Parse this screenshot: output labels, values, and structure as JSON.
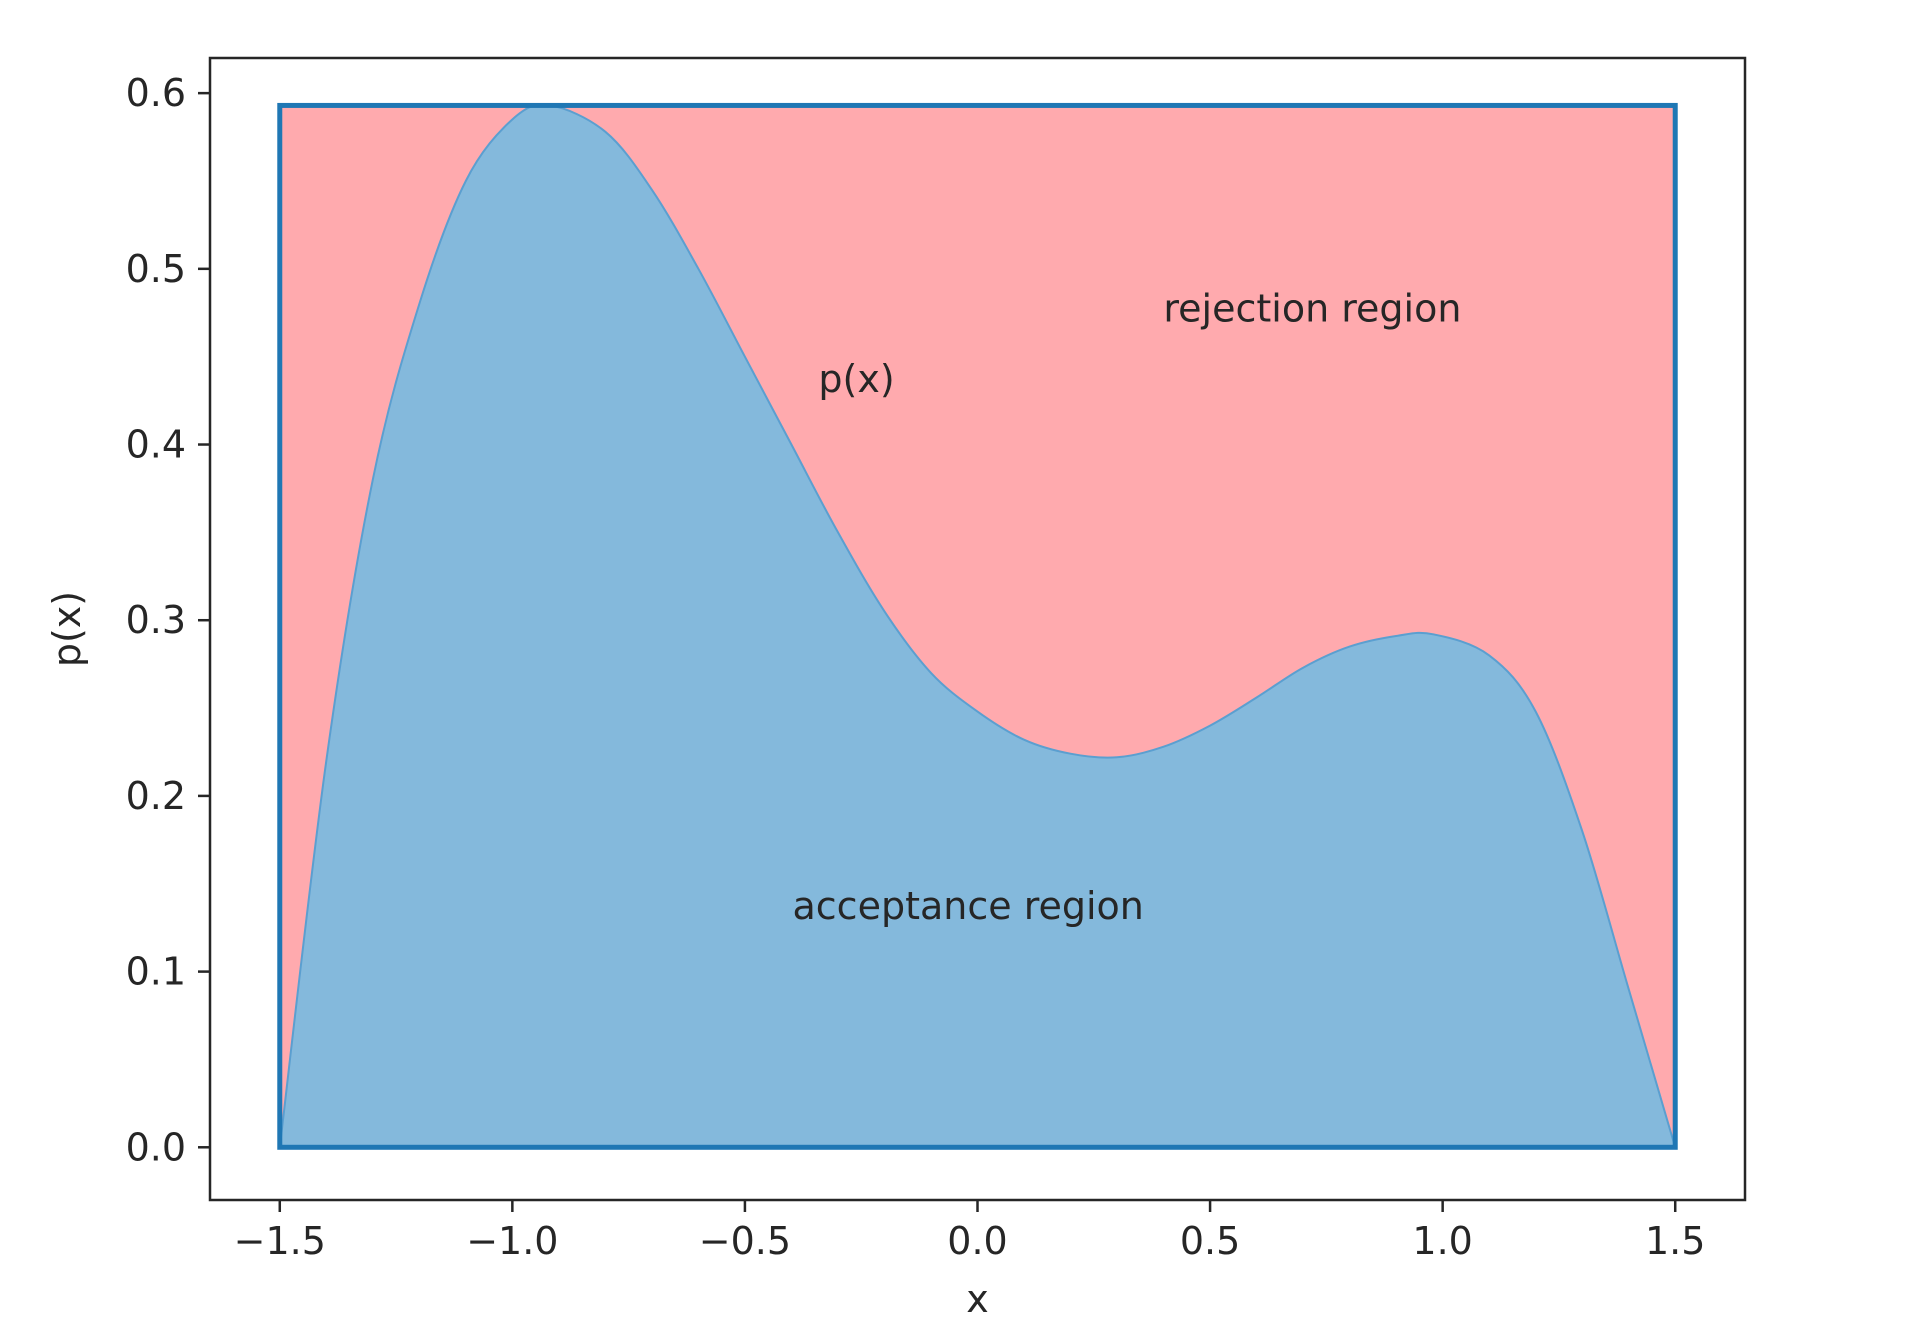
{
  "chart_data": {
    "type": "area",
    "title": "",
    "xlabel": "x",
    "ylabel": "p(x)",
    "xlim": [
      -1.65,
      1.65
    ],
    "ylim": [
      -0.03,
      0.62
    ],
    "xticks": [
      -1.5,
      -1.0,
      -0.5,
      0.0,
      0.5,
      1.0,
      1.5
    ],
    "xtick_labels": [
      "−1.5",
      "−1.0",
      "−0.5",
      "0.0",
      "0.5",
      "1.0",
      "1.5"
    ],
    "yticks": [
      0.0,
      0.1,
      0.2,
      0.3,
      0.4,
      0.5,
      0.6
    ],
    "ytick_labels": [
      "0.0",
      "0.1",
      "0.2",
      "0.3",
      "0.4",
      "0.5",
      "0.6"
    ],
    "grid": false,
    "series": [
      {
        "name": "p(x)",
        "x": [
          -1.5,
          -1.4,
          -1.3,
          -1.2,
          -1.1,
          -1.0,
          -0.92,
          -0.8,
          -0.7,
          -0.6,
          -0.5,
          -0.4,
          -0.3,
          -0.2,
          -0.1,
          0.0,
          0.1,
          0.2,
          0.3,
          0.4,
          0.5,
          0.6,
          0.7,
          0.8,
          0.9,
          0.98,
          1.1,
          1.2,
          1.3,
          1.4,
          1.5
        ],
        "y": [
          0.0,
          0.22,
          0.38,
          0.48,
          0.55,
          0.585,
          0.593,
          0.578,
          0.545,
          0.5,
          0.45,
          0.4,
          0.35,
          0.305,
          0.27,
          0.248,
          0.232,
          0.224,
          0.222,
          0.228,
          0.24,
          0.256,
          0.273,
          0.285,
          0.291,
          0.292,
          0.28,
          0.248,
          0.18,
          0.09,
          0.0
        ],
        "color": "#84b9dc"
      }
    ],
    "proposal_box": {
      "x": [
        -1.5,
        1.5
      ],
      "y": [
        0.0,
        0.593
      ],
      "edge_color": "#1f77b4",
      "fill_color": "#ffaaae"
    },
    "annotations": [
      {
        "text": "rejection region",
        "x": 0.72,
        "y": 0.47
      },
      {
        "text": "p(x)",
        "x": -0.26,
        "y": 0.43
      },
      {
        "text": "acceptance region",
        "x": -0.02,
        "y": 0.13
      }
    ]
  }
}
